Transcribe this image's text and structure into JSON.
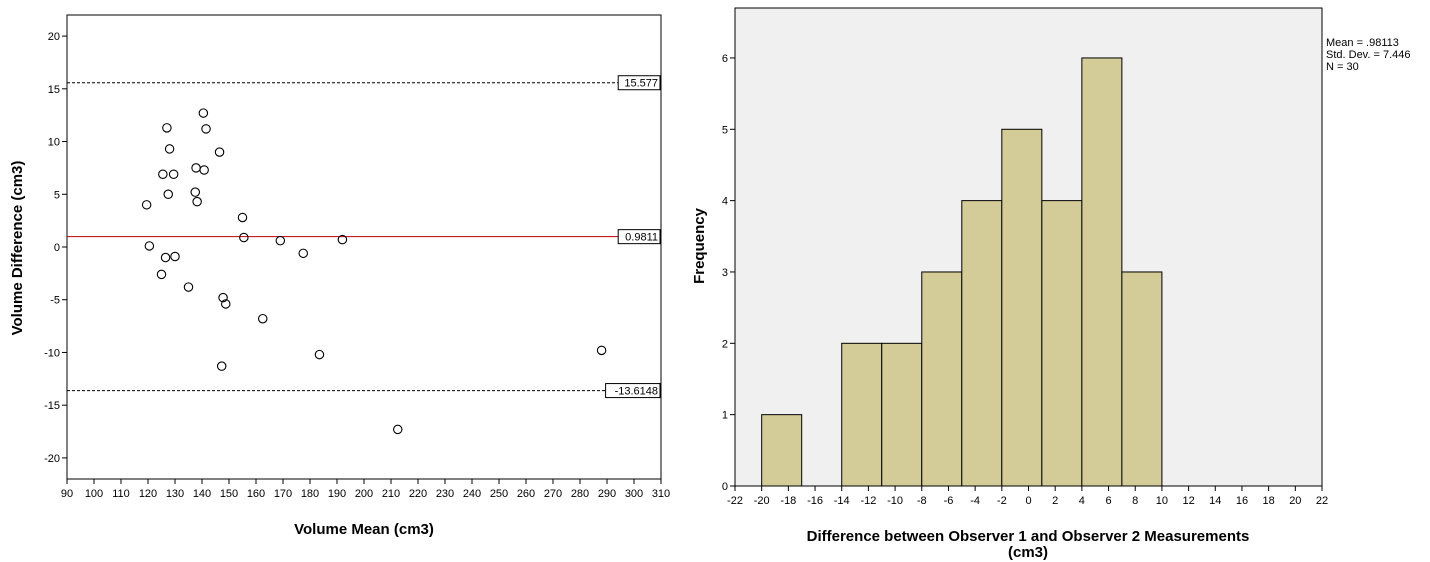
{
  "chart_data": [
    {
      "type": "scatter",
      "title": "",
      "xlabel": "Volume Mean (cm3)",
      "ylabel": "Volume Difference (cm3)",
      "xlim": [
        90,
        310
      ],
      "ylim": [
        -22,
        22
      ],
      "x_ticks": [
        "90",
        "100",
        "110",
        "120",
        "130",
        "140",
        "150",
        "160",
        "170",
        "180",
        "190",
        "200",
        "210",
        "220",
        "230",
        "240",
        "250",
        "260",
        "270",
        "280",
        "290",
        "300",
        "310"
      ],
      "y_ticks": [
        "-20",
        "-15",
        "-10",
        "-5",
        "0",
        "5",
        "10",
        "15",
        "20"
      ],
      "grid": false,
      "points": [
        {
          "x": 119.5,
          "y": 4.0
        },
        {
          "x": 120.5,
          "y": 0.1
        },
        {
          "x": 125.0,
          "y": -2.6
        },
        {
          "x": 125.5,
          "y": 6.9
        },
        {
          "x": 126.5,
          "y": -1.0
        },
        {
          "x": 127.0,
          "y": 11.3
        },
        {
          "x": 127.5,
          "y": 5.0
        },
        {
          "x": 128.0,
          "y": 9.3
        },
        {
          "x": 129.5,
          "y": 6.9
        },
        {
          "x": 130.0,
          "y": -0.9
        },
        {
          "x": 135.0,
          "y": -3.8
        },
        {
          "x": 137.5,
          "y": 5.2
        },
        {
          "x": 137.8,
          "y": 7.5
        },
        {
          "x": 138.2,
          "y": 4.3
        },
        {
          "x": 140.5,
          "y": 12.7
        },
        {
          "x": 140.8,
          "y": 7.3
        },
        {
          "x": 141.5,
          "y": 11.2
        },
        {
          "x": 146.5,
          "y": 9.0
        },
        {
          "x": 147.3,
          "y": -11.3
        },
        {
          "x": 147.8,
          "y": -4.8
        },
        {
          "x": 148.8,
          "y": -5.4
        },
        {
          "x": 155.0,
          "y": 2.8
        },
        {
          "x": 155.5,
          "y": 0.9
        },
        {
          "x": 162.5,
          "y": -6.8
        },
        {
          "x": 169.0,
          "y": 0.6
        },
        {
          "x": 177.5,
          "y": -0.6
        },
        {
          "x": 183.5,
          "y": -10.2
        },
        {
          "x": 192.0,
          "y": 0.7
        },
        {
          "x": 212.5,
          "y": -17.3
        },
        {
          "x": 288.0,
          "y": -9.8
        }
      ],
      "reference_lines": [
        {
          "value": 15.577,
          "label": "15.577",
          "style": "dashed",
          "color": "#000000"
        },
        {
          "value": 0.9811,
          "label": "0.9811",
          "style": "solid",
          "color": "#c00000"
        },
        {
          "value": -13.6148,
          "label": "-13.6148",
          "style": "dashed",
          "color": "#000000"
        }
      ]
    },
    {
      "type": "bar",
      "title": "",
      "xlabel": "Difference between Observer 1 and Observer 2 Measurements",
      "xlabel_line2": "(cm3)",
      "ylabel": "Frequency",
      "xlim": [
        -22,
        22
      ],
      "ylim": [
        0,
        6.7
      ],
      "x_ticks": [
        "-22",
        "-20",
        "-18",
        "-16",
        "-14",
        "-12",
        "-10",
        "-8",
        "-6",
        "-4",
        "-2",
        "0",
        "2",
        "4",
        "6",
        "8",
        "10",
        "12",
        "14",
        "16",
        "18",
        "20",
        "22"
      ],
      "y_ticks": [
        "0",
        "1",
        "2",
        "3",
        "4",
        "5",
        "6"
      ],
      "bins": [
        {
          "start": -20,
          "end": -17,
          "count": 1
        },
        {
          "start": -14,
          "end": -11,
          "count": 2
        },
        {
          "start": -11,
          "end": -8,
          "count": 2
        },
        {
          "start": -8,
          "end": -5,
          "count": 3
        },
        {
          "start": -5,
          "end": -2,
          "count": 4
        },
        {
          "start": -2,
          "end": 1,
          "count": 5
        },
        {
          "start": 1,
          "end": 4,
          "count": 4
        },
        {
          "start": 4,
          "end": 7,
          "count": 6
        },
        {
          "start": 7,
          "end": 10,
          "count": 3
        }
      ],
      "bar_color": "#d3cc98",
      "background": "#f0f0f0",
      "grid": false,
      "stats": {
        "mean": "Mean = .98113",
        "std": "Std. Dev. = 7.446",
        "n": "N = 30"
      }
    }
  ]
}
